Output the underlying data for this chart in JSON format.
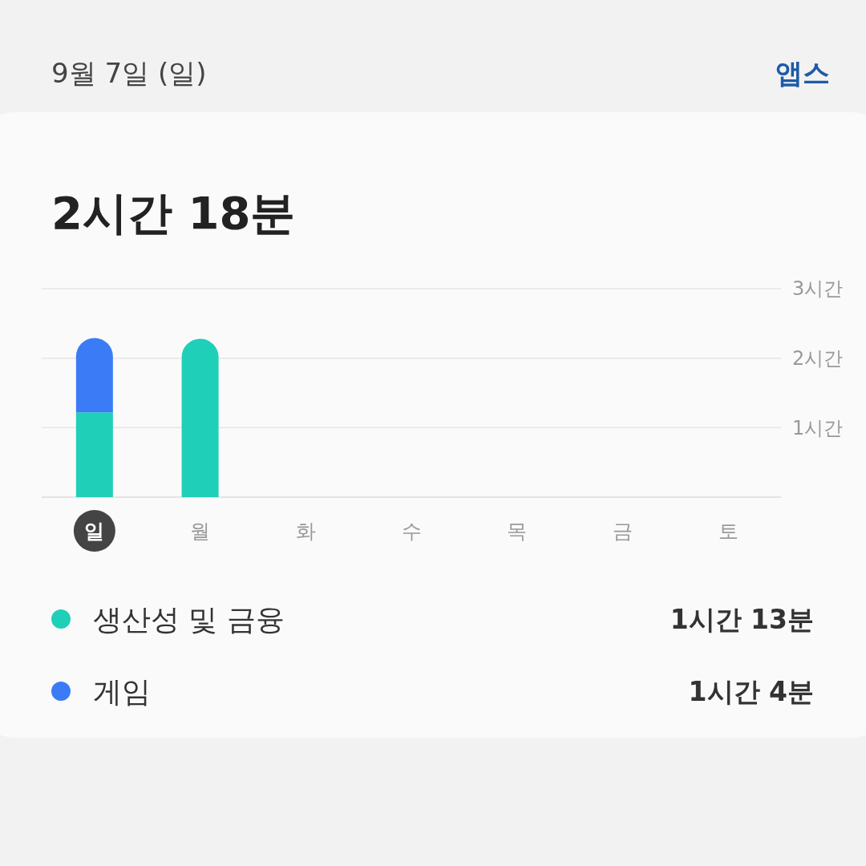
{
  "chart_data": {
    "type": "bar",
    "stacked": true,
    "title": "2시간 18분",
    "subtitle": "9월 7일 (일)",
    "categories": [
      "일",
      "월",
      "화",
      "수",
      "목",
      "금",
      "토"
    ],
    "series": [
      {
        "name": "생산성 및 금융",
        "color": "#20cfb8",
        "values": [
          1.22,
          2.28,
          null,
          null,
          null,
          null,
          null
        ]
      },
      {
        "name": "게임",
        "color": "#3b7cf6",
        "values": [
          1.07,
          null,
          null,
          null,
          null,
          null,
          null
        ]
      }
    ],
    "ylim": [
      0,
      3
    ],
    "yticks": [
      {
        "value": 1,
        "label": "1시간"
      },
      {
        "value": 2,
        "label": "2시간"
      },
      {
        "value": 3,
        "label": "3시간"
      }
    ],
    "grid": "y",
    "legend": "bottom",
    "annotations": [
      "1시간 13분",
      "1시간 4분",
      "앱스"
    ]
  }
}
